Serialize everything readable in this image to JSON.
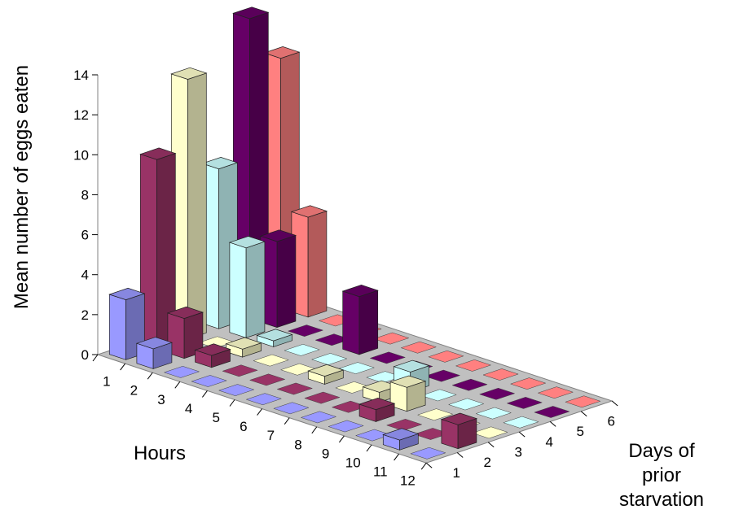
{
  "chart_data": {
    "type": "bar3d",
    "title": "",
    "ylabel": "Mean number of eggs eaten",
    "xlabel": "Hours",
    "zlabel_lines": [
      "Days of",
      "prior",
      "starvation"
    ],
    "ylim": [
      0,
      14
    ],
    "yticks": [
      "0",
      "2",
      "4",
      "6",
      "8",
      "10",
      "12",
      "14"
    ],
    "hours": [
      "1",
      "2",
      "3",
      "4",
      "5",
      "6",
      "7",
      "8",
      "9",
      "10",
      "11",
      "12"
    ],
    "days": [
      "1",
      "2",
      "3",
      "4",
      "5",
      "6"
    ],
    "colors": [
      "#9999ff",
      "#993366",
      "#ffffcc",
      "#ccffff",
      "#660066",
      "#ff8080"
    ],
    "series": [
      {
        "day": "1",
        "values": [
          3.0,
          1.0,
          0,
          0,
          0,
          0,
          0,
          0,
          0,
          0,
          0.5,
          0
        ]
      },
      {
        "day": "2",
        "values": [
          9.5,
          2.0,
          0.6,
          0,
          0,
          0,
          0,
          0,
          0.6,
          0,
          0,
          1.2
        ]
      },
      {
        "day": "3",
        "values": [
          13.0,
          0,
          0.4,
          0,
          0,
          0.4,
          0,
          0.5,
          1.2,
          0,
          0,
          0
        ]
      },
      {
        "day": "4",
        "values": [
          8.0,
          4.5,
          0.3,
          0,
          0,
          0,
          0,
          1.0,
          0,
          0,
          0,
          0
        ]
      },
      {
        "day": "5",
        "values": [
          15.0,
          4.3,
          0,
          0,
          2.9,
          0,
          0,
          0,
          0,
          0,
          0,
          0
        ]
      },
      {
        "day": "6",
        "values": [
          12.5,
          5.0,
          0,
          0,
          0,
          0,
          0,
          0,
          0,
          0,
          0,
          0
        ]
      }
    ]
  }
}
